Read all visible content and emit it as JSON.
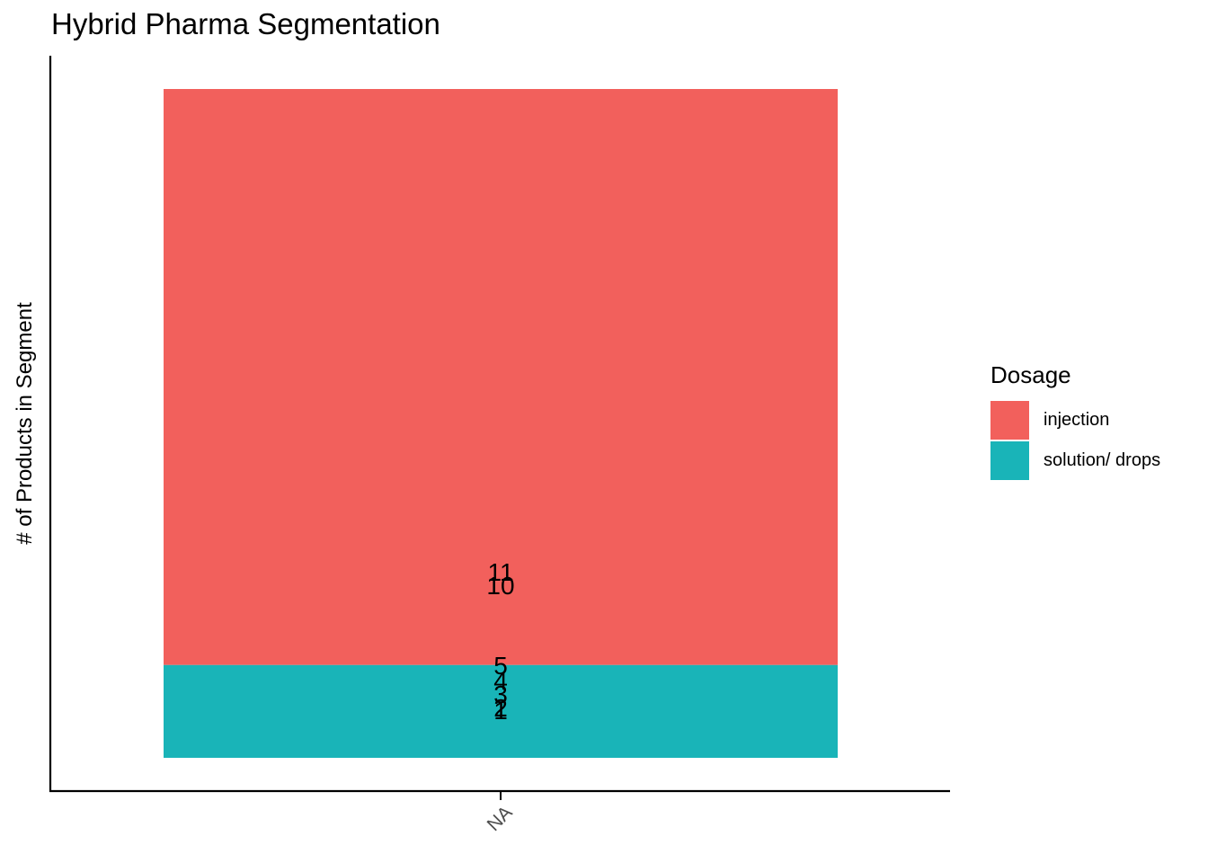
{
  "chart_data": {
    "type": "bar",
    "title": "Hybrid Pharma Segmentation",
    "xlabel": "",
    "ylabel": "# of Products in Segment",
    "categories": [
      "NA"
    ],
    "series": [
      {
        "name": "solution/ drops",
        "color": "#19B4B8",
        "values": [
          5
        ],
        "labels": [
          "1",
          "2",
          "3",
          "4",
          "5"
        ]
      },
      {
        "name": "injection",
        "color": "#F2605C",
        "values": [
          31
        ],
        "labels": [
          "10",
          "11"
        ]
      }
    ],
    "stacked": true,
    "ylim": [
      0,
      36
    ],
    "y_axis_ticks_shown": false,
    "grid": false,
    "legend": {
      "title": "Dosage",
      "position": "right",
      "items": [
        "injection",
        "solution/ drops"
      ]
    }
  }
}
